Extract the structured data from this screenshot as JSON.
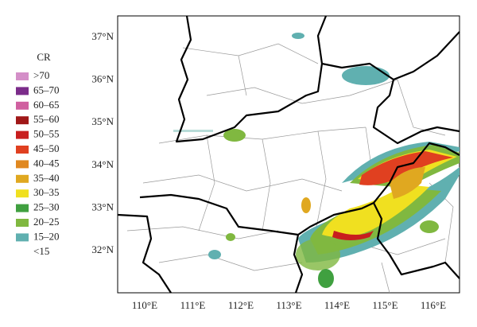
{
  "legend": {
    "title": "CR",
    "items": [
      {
        "label": ">70",
        "color": "#d48fc8"
      },
      {
        "label": "65–70",
        "color": "#7b2c8a"
      },
      {
        "label": "60–65",
        "color": "#d060a0"
      },
      {
        "label": "55–60",
        "color": "#a01818"
      },
      {
        "label": "50–55",
        "color": "#c81e1e"
      },
      {
        "label": "45–50",
        "color": "#e04020"
      },
      {
        "label": "40–45",
        "color": "#e08820"
      },
      {
        "label": "35–40",
        "color": "#e0a820"
      },
      {
        "label": "30–35",
        "color": "#f0e020"
      },
      {
        "label": "25–30",
        "color": "#40a040"
      },
      {
        "label": "20–25",
        "color": "#80b840"
      },
      {
        "label": "15–20",
        "color": "#60b0b0"
      },
      {
        "label": "<15"
      }
    ]
  },
  "map": {
    "latitude_labels": [
      "37°N",
      "36°N",
      "35°N",
      "34°N",
      "33°N",
      "32°N"
    ],
    "longitude_labels": [
      "110°E",
      "111°E",
      "112°E",
      "113°E",
      "114°E",
      "115°E",
      "116°E"
    ]
  }
}
